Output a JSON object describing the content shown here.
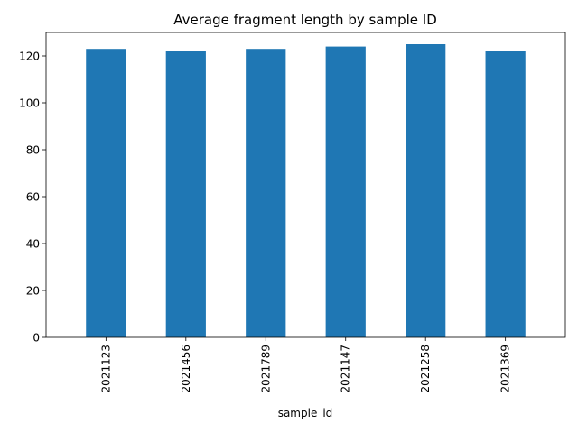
{
  "chart_data": {
    "type": "bar",
    "title": "Average fragment length by sample ID",
    "xlabel": "sample_id",
    "ylabel": "",
    "categories": [
      "2021123",
      "2021456",
      "2021789",
      "2021147",
      "2021258",
      "2021369"
    ],
    "values": [
      123,
      122,
      123,
      124,
      125,
      122
    ],
    "ylim": [
      0,
      130
    ],
    "yticks": [
      0,
      20,
      40,
      60,
      80,
      100,
      120
    ],
    "bar_color": "#1f77b4",
    "grid": false,
    "legend": "none"
  }
}
